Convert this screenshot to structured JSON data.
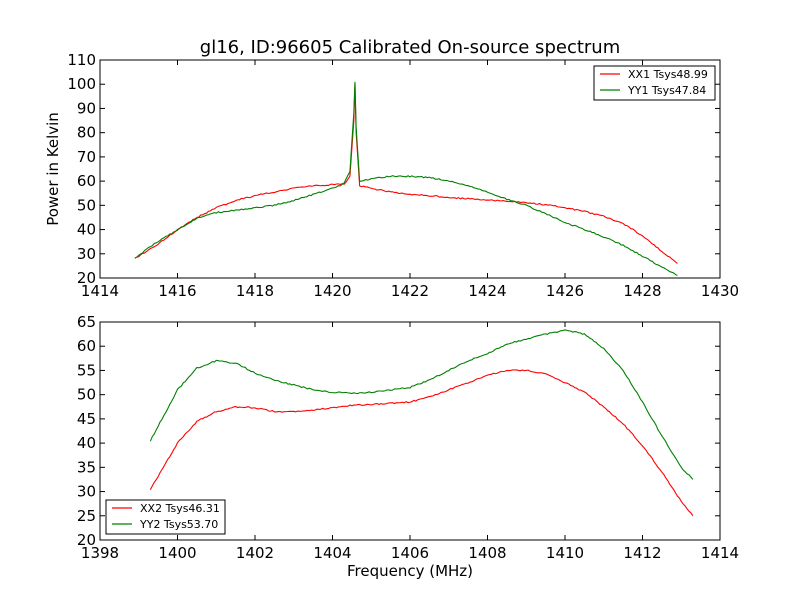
{
  "chart_data": [
    {
      "type": "line",
      "title": "gl16, ID:96605 Calibrated On-source spectrum",
      "xlabel": "",
      "ylabel": "Power in Kelvin",
      "xlim": [
        1414,
        1430
      ],
      "ylim": [
        20,
        110
      ],
      "xticks": [
        1414,
        1416,
        1418,
        1420,
        1422,
        1424,
        1426,
        1428,
        1430
      ],
      "yticks": [
        20,
        30,
        40,
        50,
        60,
        70,
        80,
        90,
        100,
        110
      ],
      "grid": false,
      "legend_position": "top-right",
      "series": [
        {
          "name": "XX1 Tsys48.99",
          "color": "#ff0000",
          "x": [
            1414.9,
            1415.2,
            1415.5,
            1416.0,
            1416.5,
            1417.0,
            1417.5,
            1418.0,
            1418.5,
            1419.0,
            1419.5,
            1420.0,
            1420.3,
            1420.45,
            1420.55,
            1420.58,
            1420.61,
            1420.7,
            1421.0,
            1421.5,
            1422.0,
            1422.5,
            1423.0,
            1423.5,
            1424.0,
            1424.5,
            1425.0,
            1425.5,
            1426.0,
            1426.5,
            1427.0,
            1427.5,
            1428.0,
            1428.5,
            1428.9
          ],
          "y": [
            28,
            31,
            34,
            40,
            45,
            49,
            52,
            54,
            55.5,
            57,
            58,
            58.5,
            58.8,
            62,
            85,
            100,
            80,
            58,
            57,
            55.5,
            54.5,
            54,
            53.3,
            52.7,
            52.2,
            51.7,
            51,
            50.3,
            49,
            47.5,
            45.5,
            42.5,
            37.5,
            31,
            26
          ]
        },
        {
          "name": "YY1 Tsys47.84",
          "color": "#008000",
          "x": [
            1414.9,
            1415.2,
            1415.5,
            1416.0,
            1416.5,
            1417.0,
            1417.5,
            1418.0,
            1418.5,
            1419.0,
            1419.5,
            1420.0,
            1420.3,
            1420.45,
            1420.55,
            1420.58,
            1420.61,
            1420.7,
            1421.0,
            1421.5,
            1422.0,
            1422.5,
            1423.0,
            1423.5,
            1424.0,
            1424.5,
            1425.0,
            1425.5,
            1426.0,
            1426.5,
            1427.0,
            1427.5,
            1428.0,
            1428.5,
            1428.9
          ],
          "y": [
            28,
            32,
            35,
            40,
            44.5,
            47,
            48,
            49,
            50,
            52,
            54.5,
            57,
            59,
            64,
            88,
            101,
            82,
            60,
            61,
            62,
            62,
            61.5,
            60,
            58,
            55.5,
            52.5,
            50,
            46.5,
            43,
            40,
            37,
            33.5,
            29,
            24.5,
            21
          ]
        }
      ]
    },
    {
      "type": "line",
      "title": "",
      "xlabel": "Frequency (MHz)",
      "ylabel": "",
      "xlim": [
        1398,
        1414
      ],
      "ylim": [
        20,
        65
      ],
      "xticks": [
        1398,
        1400,
        1402,
        1404,
        1406,
        1408,
        1410,
        1412,
        1414
      ],
      "yticks": [
        20,
        25,
        30,
        35,
        40,
        45,
        50,
        55,
        60,
        65
      ],
      "grid": false,
      "legend_position": "bottom-left",
      "series": [
        {
          "name": "XX2 Tsys46.31",
          "color": "#ff0000",
          "x": [
            1399.3,
            1399.6,
            1400.0,
            1400.5,
            1401.0,
            1401.5,
            1402.0,
            1402.5,
            1403.0,
            1403.5,
            1404.0,
            1404.5,
            1405.0,
            1405.5,
            1406.0,
            1406.5,
            1407.0,
            1407.5,
            1408.0,
            1408.5,
            1409.0,
            1409.5,
            1410.0,
            1410.5,
            1411.0,
            1411.5,
            1412.0,
            1412.5,
            1413.0,
            1413.3
          ],
          "y": [
            30.5,
            34.5,
            40,
            44.5,
            46.5,
            47.5,
            47.3,
            46.5,
            46.5,
            46.8,
            47.3,
            47.8,
            48,
            48.2,
            48.5,
            49.5,
            51,
            52.5,
            54,
            55,
            55,
            54.3,
            52.5,
            50.5,
            47.5,
            44,
            39.5,
            34,
            28,
            25
          ]
        },
        {
          "name": "YY2 Tsys53.70",
          "color": "#008000",
          "x": [
            1399.3,
            1399.6,
            1400.0,
            1400.5,
            1401.0,
            1401.5,
            1402.0,
            1402.5,
            1403.0,
            1403.5,
            1404.0,
            1404.5,
            1405.0,
            1405.5,
            1406.0,
            1406.5,
            1407.0,
            1407.5,
            1408.0,
            1408.5,
            1409.0,
            1409.5,
            1410.0,
            1410.5,
            1411.0,
            1411.5,
            1412.0,
            1412.5,
            1413.0,
            1413.3
          ],
          "y": [
            40.5,
            45,
            51,
            55.5,
            57,
            56.5,
            54.5,
            53,
            52,
            51,
            50.5,
            50.3,
            50.5,
            51,
            51.5,
            53,
            55,
            57,
            58.5,
            60.5,
            61.5,
            62.5,
            63.3,
            62.5,
            59.5,
            55,
            48.5,
            41.5,
            35,
            32.5
          ]
        }
      ]
    }
  ]
}
